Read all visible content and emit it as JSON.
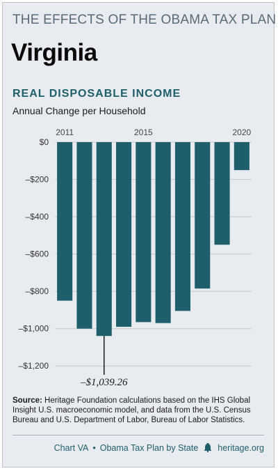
{
  "header": {
    "series_title": "THE EFFECTS OF THE OBAMA TAX PLAN",
    "state": "Virginia"
  },
  "chart_data": {
    "type": "bar",
    "title": "REAL DISPOSABLE INCOME",
    "subtitle": "Annual Change per Household",
    "categories": [
      "2011",
      "2012",
      "2013",
      "2014",
      "2015",
      "2016",
      "2017",
      "2018",
      "2019",
      "2020"
    ],
    "x_tick_labels": [
      "2011",
      "2015",
      "2020"
    ],
    "values": [
      -850,
      -1000,
      -1039.26,
      -990,
      -965,
      -970,
      -905,
      -785,
      -550,
      -150
    ],
    "ylim": [
      -1300,
      0
    ],
    "y_ticks": [
      0,
      -200,
      -400,
      -600,
      -800,
      -1000,
      -1200
    ],
    "y_tick_labels": [
      "$0",
      "–$200",
      "–$400",
      "–$600",
      "–$800",
      "–$1,000",
      "–$1,200"
    ],
    "annotation": {
      "category": "2013",
      "label": "–$1,039.26"
    },
    "bar_color": "#1f5f6c",
    "grid": true
  },
  "source": {
    "label": "Source:",
    "text": "Heritage Foundation calculations based on the IHS Global Insight U.S. macroeconomic model, and data from the U.S. Census Bureau and U.S. Department of Labor, Bureau of Labor Statistics."
  },
  "footer": {
    "chart_id": "Chart VA",
    "separator": "•",
    "series_name": "Obama Tax Plan by State",
    "site": "heritage.org",
    "icon": "liberty-bell-icon"
  }
}
